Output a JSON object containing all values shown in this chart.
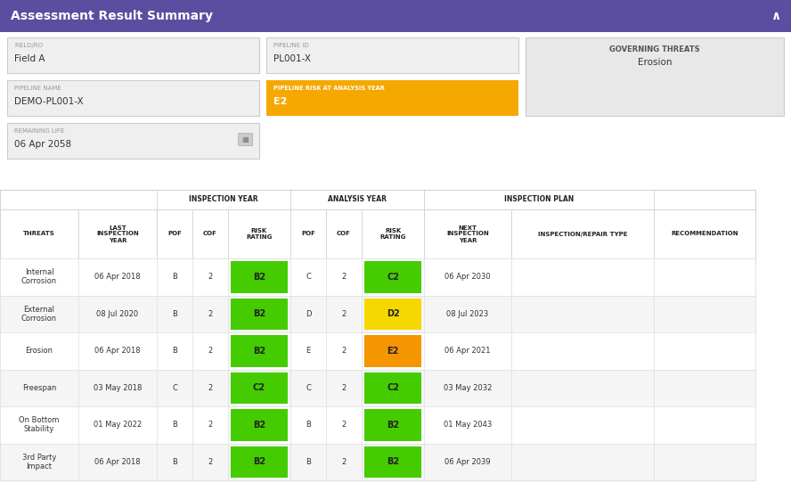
{
  "title": "Assessment Result Summary",
  "title_bg": "#5b4ea0",
  "title_color": "#ffffff",
  "field_ro_label": "FIELD/RO",
  "field_ro_value": "Field A",
  "pipeline_id_label": "PIPELINE ID",
  "pipeline_id_value": "PL001-X",
  "governing_threats_label": "GOVERNING THREATS",
  "governing_threats_value": "Erosion",
  "pipeline_name_label": "PIPELINE NAME",
  "pipeline_name_value": "DEMO-PL001-X",
  "pipeline_risk_label": "PIPELINE RISK AT ANALYSIS YEAR",
  "pipeline_risk_value": "E2",
  "pipeline_risk_bg": "#f5a800",
  "remaining_life_label": "REMAINING LIFE",
  "remaining_life_value": "06 Apr 2058",
  "input_bg": "#efefef",
  "input_border": "#cccccc",
  "threats": [
    "Internal\nCorrosion",
    "External\nCorrosion",
    "Erosion",
    "Freespan",
    "On Bottom\nStability",
    "3rd Party\nImpact"
  ],
  "last_insp_year": [
    "06 Apr 2018",
    "08 Jul 2020",
    "06 Apr 2018",
    "03 May 2018",
    "01 May 2022",
    "06 Apr 2018"
  ],
  "insp_pof": [
    "B",
    "B",
    "B",
    "C",
    "B",
    "B"
  ],
  "insp_cof": [
    "2",
    "2",
    "2",
    "2",
    "2",
    "2"
  ],
  "insp_risk": [
    "B2",
    "B2",
    "B2",
    "C2",
    "B2",
    "B2"
  ],
  "insp_risk_colors": [
    "#44cc00",
    "#44cc00",
    "#44cc00",
    "#44cc00",
    "#44cc00",
    "#44cc00"
  ],
  "anal_pof": [
    "C",
    "D",
    "E",
    "C",
    "B",
    "B"
  ],
  "anal_cof": [
    "2",
    "2",
    "2",
    "2",
    "2",
    "2"
  ],
  "anal_risk": [
    "C2",
    "D2",
    "E2",
    "C2",
    "B2",
    "B2"
  ],
  "anal_risk_colors": [
    "#44cc00",
    "#f5d800",
    "#f59500",
    "#44cc00",
    "#44cc00",
    "#44cc00"
  ],
  "next_insp_year": [
    "06 Apr 2030",
    "08 Jul 2023",
    "06 Apr 2021",
    "03 May 2032",
    "01 May 2043",
    "06 Apr 2039"
  ],
  "fig_bg": "#ffffff",
  "label_color": "#999999",
  "value_color": "#333333"
}
